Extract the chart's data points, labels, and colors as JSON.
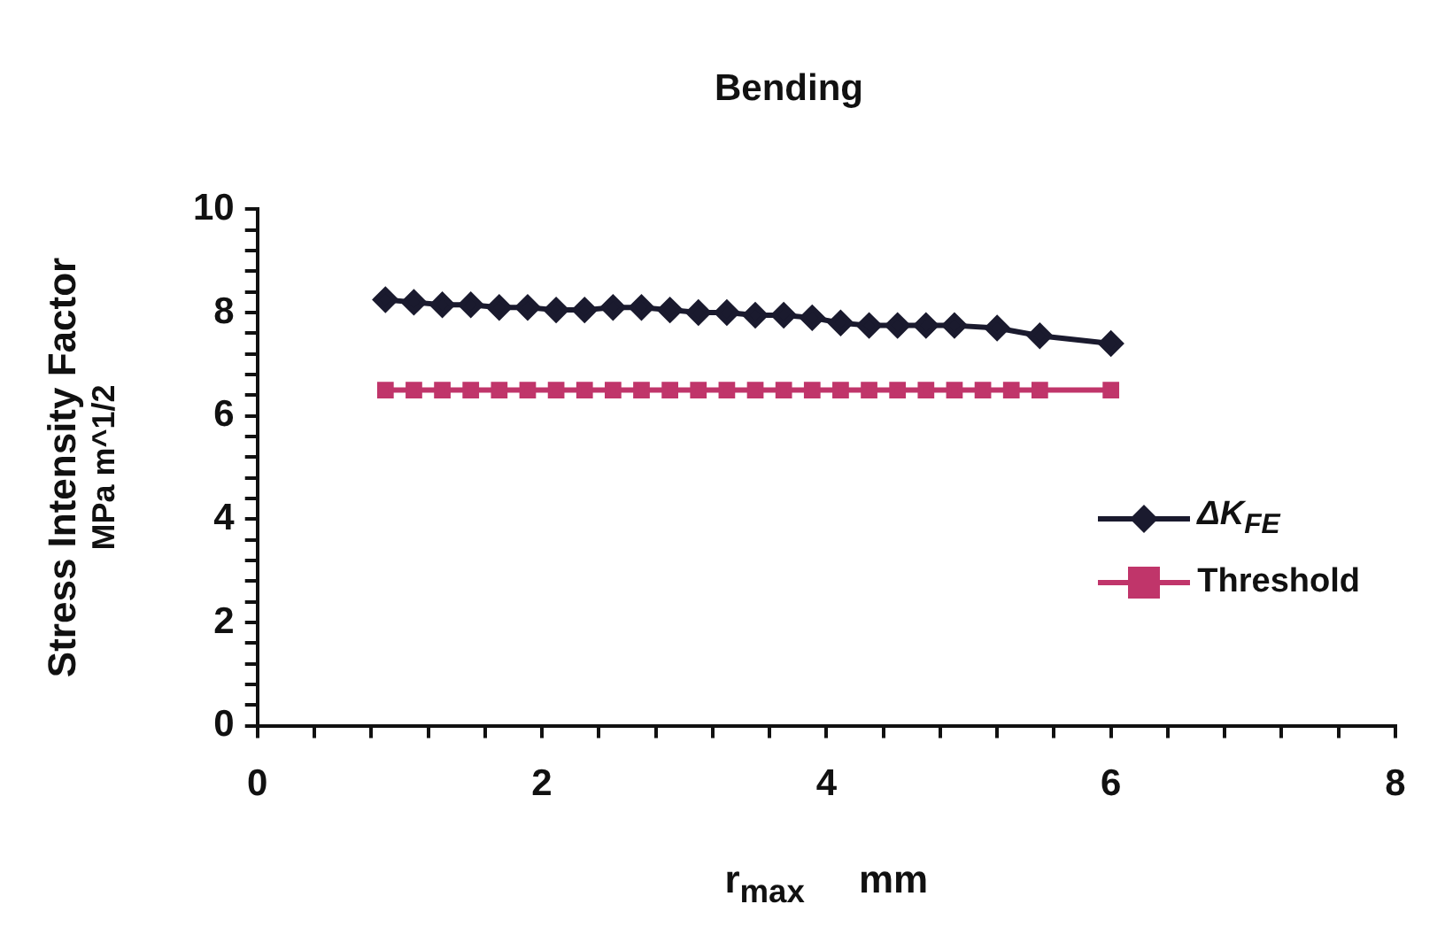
{
  "chart_data": {
    "type": "line",
    "title": "Bending",
    "xlabel": "r$_{max}$     mm",
    "ylabel": "Stress Intensity Factor\nMPa m^1/2",
    "xlim": [
      0,
      8
    ],
    "ylim": [
      0,
      10
    ],
    "xticks": [
      0,
      {
        "value": 0.4,
        "label": null
      },
      {
        "value": 0.8,
        "label": null
      },
      {
        "value": 1.2,
        "label": null
      },
      {
        "value": 1.6,
        "label": null
      },
      2,
      {
        "value": 2.4,
        "label": null
      },
      {
        "value": 2.8,
        "label": null
      },
      {
        "value": 3.2,
        "label": null
      },
      {
        "value": 3.6,
        "label": null
      },
      4,
      {
        "value": 4.4,
        "label": null
      },
      {
        "value": 4.8,
        "label": null
      },
      {
        "value": 5.2,
        "label": null
      },
      {
        "value": 5.6,
        "label": null
      },
      6,
      {
        "value": 6.4,
        "label": null
      },
      {
        "value": 6.8,
        "label": null
      },
      {
        "value": 7.2,
        "label": null
      },
      {
        "value": 7.6,
        "label": null
      },
      8
    ],
    "yticks": [
      0,
      {
        "value": 0.4,
        "label": null
      },
      {
        "value": 0.8,
        "label": null
      },
      {
        "value": 1.2,
        "label": null
      },
      {
        "value": 1.6,
        "label": null
      },
      2,
      {
        "value": 2.4,
        "label": null
      },
      {
        "value": 2.8,
        "label": null
      },
      {
        "value": 3.2,
        "label": null
      },
      {
        "value": 3.6,
        "label": null
      },
      4,
      {
        "value": 4.4,
        "label": null
      },
      {
        "value": 4.8,
        "label": null
      },
      {
        "value": 5.2,
        "label": null
      },
      {
        "value": 5.6,
        "label": null
      },
      6,
      {
        "value": 6.4,
        "label": null
      },
      {
        "value": 6.8,
        "label": null
      },
      {
        "value": 7.2,
        "label": null
      },
      {
        "value": 7.6,
        "label": null
      },
      8,
      {
        "value": 8.4,
        "label": null
      },
      {
        "value": 8.8,
        "label": null
      },
      {
        "value": 9.2,
        "label": null
      },
      {
        "value": 9.6,
        "label": null
      },
      10
    ],
    "grid": false,
    "legend": "bottom right",
    "series": [
      {
        "name": "ΔK$_{FE}$",
        "color": "#1a1a2e",
        "marker": "diamond",
        "x": [
          0.9,
          1.1,
          1.3,
          1.5,
          1.7,
          1.9,
          2.1,
          2.3,
          2.5,
          2.7,
          2.9,
          3.1,
          3.3,
          3.5,
          3.7,
          3.9,
          4.1,
          4.3,
          4.5,
          4.7,
          4.9,
          5.2,
          5.5,
          6.0
        ],
        "values": [
          8.25,
          8.2,
          8.15,
          8.15,
          8.1,
          8.1,
          8.05,
          8.05,
          8.1,
          8.1,
          8.05,
          8.0,
          8.0,
          7.95,
          7.95,
          7.9,
          7.8,
          7.75,
          7.75,
          7.75,
          7.75,
          7.7,
          7.55,
          7.4
        ]
      },
      {
        "name": "Threshold",
        "color": "#c0356a",
        "marker": "square",
        "x": [
          0.9,
          1.1,
          1.3,
          1.5,
          1.7,
          1.9,
          2.1,
          2.3,
          2.5,
          2.7,
          2.9,
          3.1,
          3.3,
          3.5,
          3.7,
          3.9,
          4.1,
          4.3,
          4.5,
          4.7,
          4.9,
          5.1,
          5.3,
          5.5,
          6.0
        ],
        "values": [
          6.5,
          6.5,
          6.5,
          6.5,
          6.5,
          6.5,
          6.5,
          6.5,
          6.5,
          6.5,
          6.5,
          6.5,
          6.5,
          6.5,
          6.5,
          6.5,
          6.5,
          6.5,
          6.5,
          6.5,
          6.5,
          6.5,
          6.5,
          6.5,
          6.5
        ]
      }
    ]
  }
}
